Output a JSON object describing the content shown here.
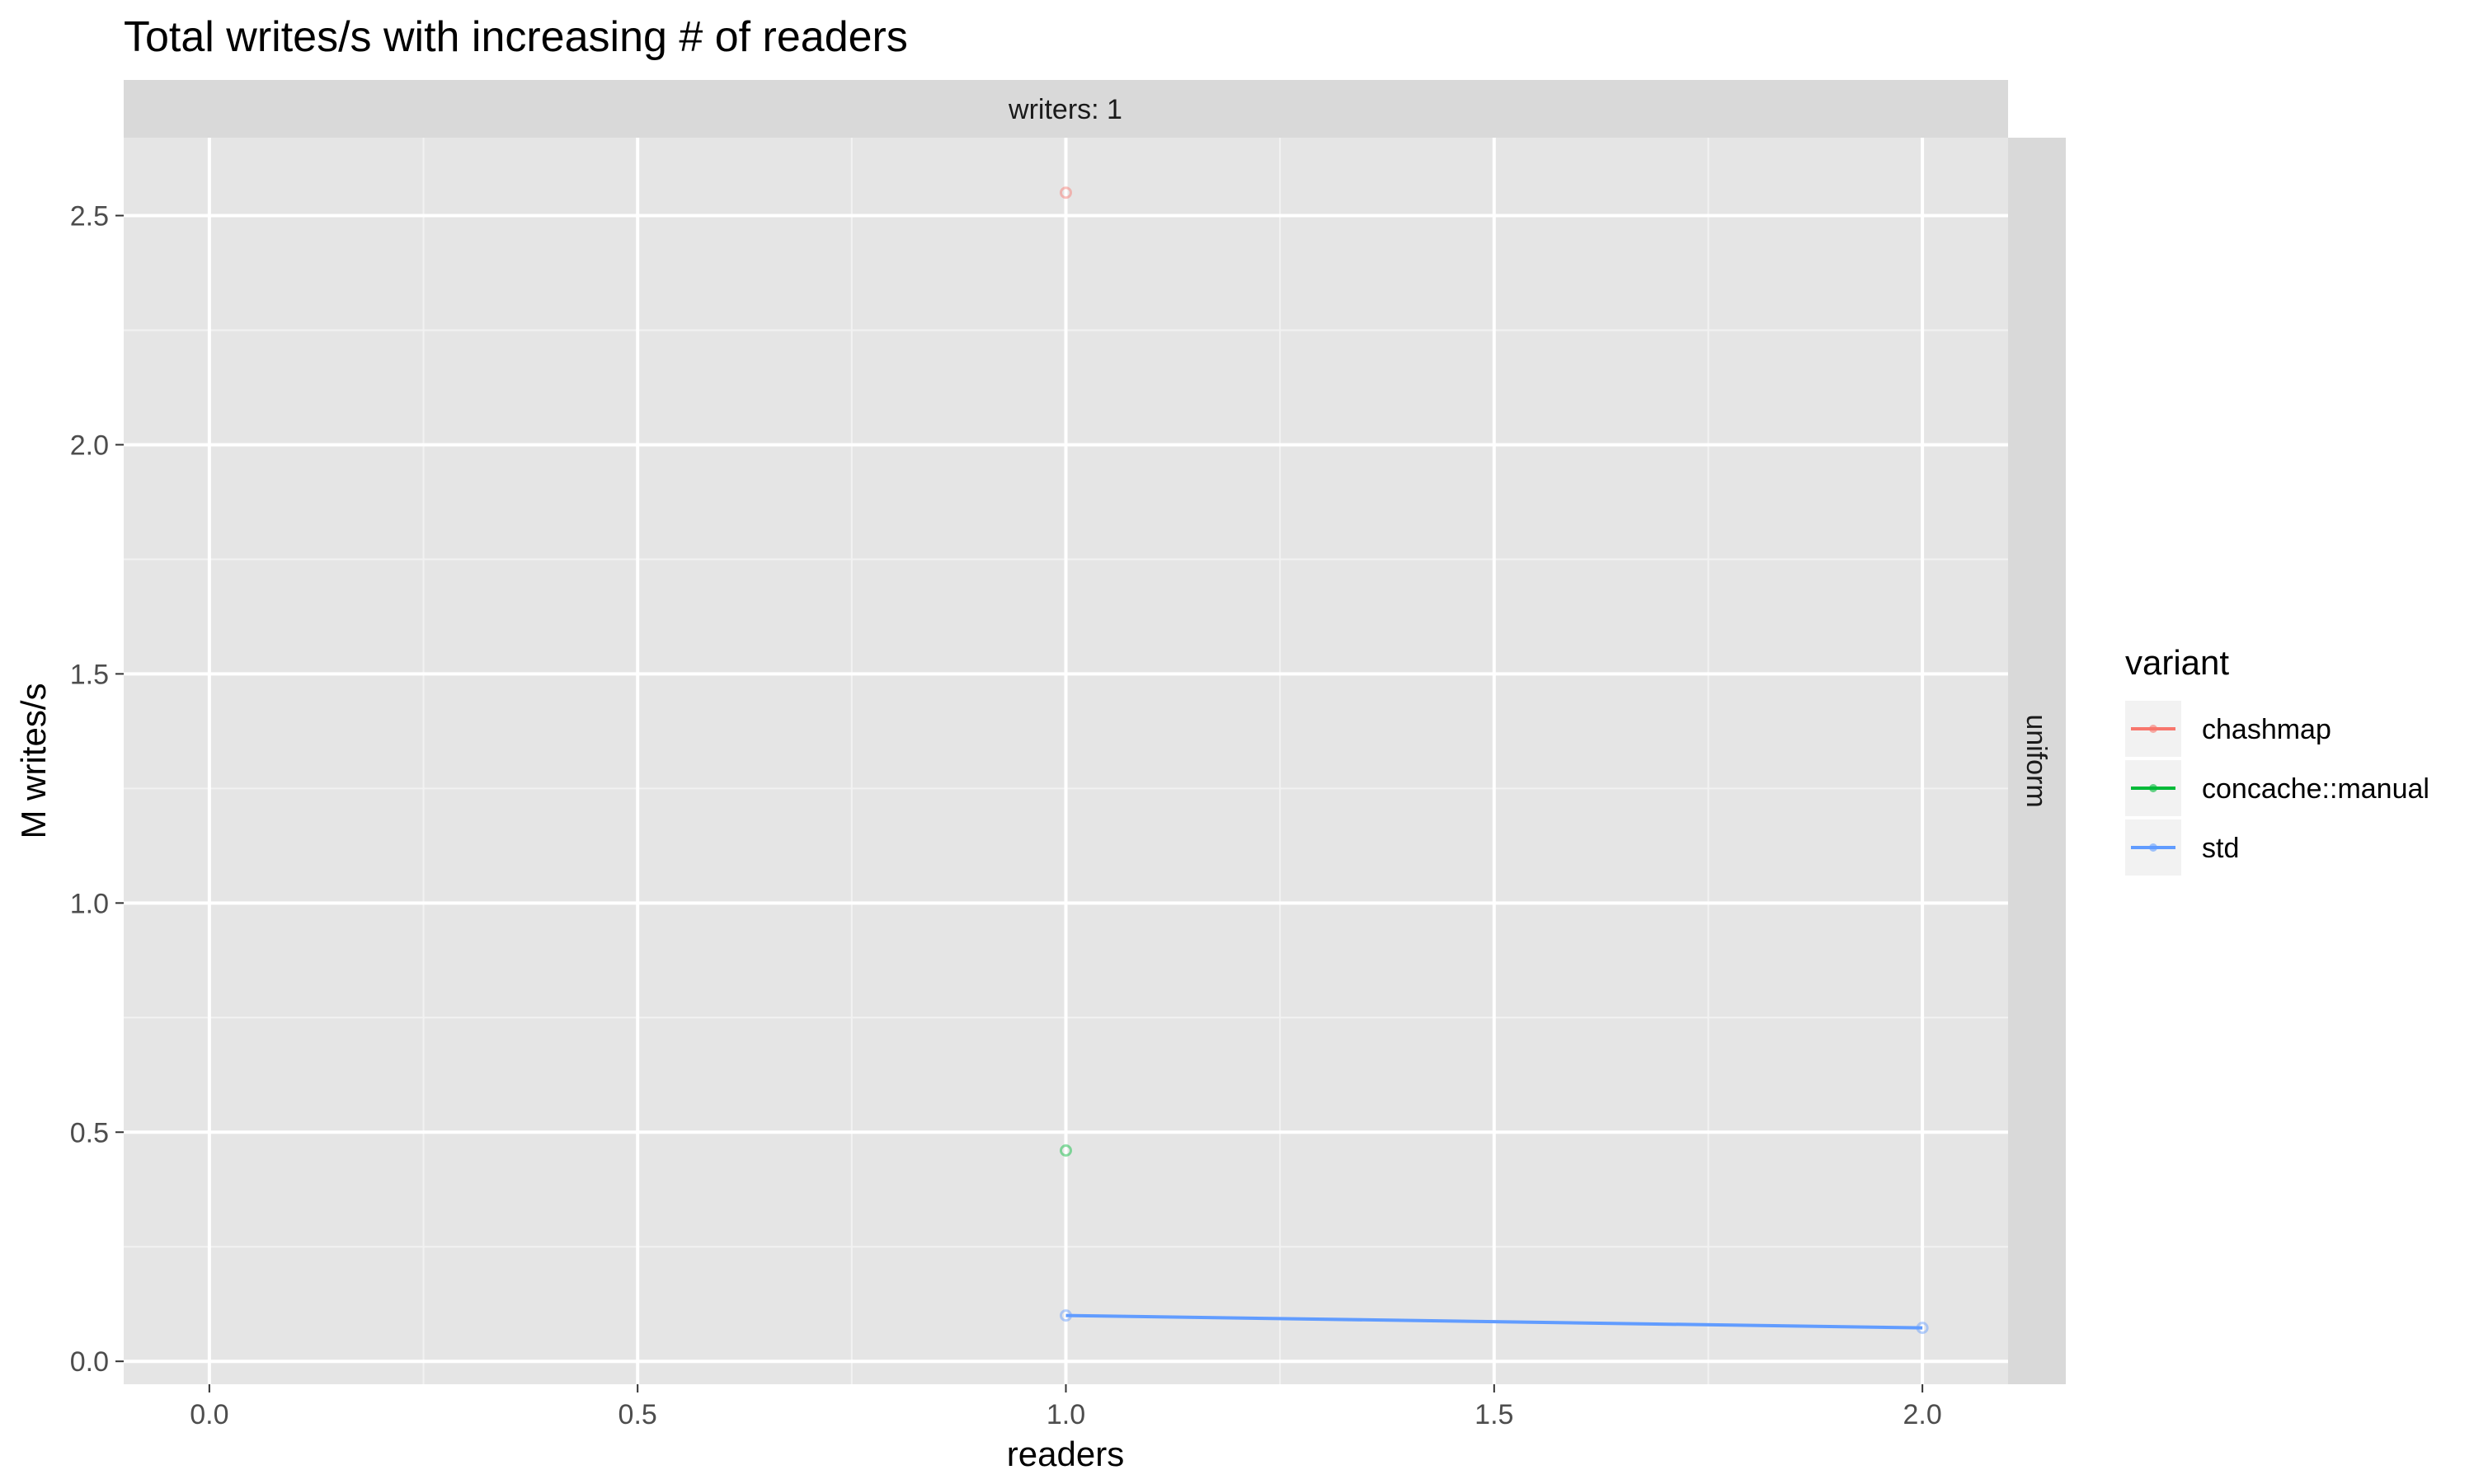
{
  "chart_data": {
    "type": "line",
    "title": "Total writes/s with increasing # of readers",
    "xlabel": "readers",
    "ylabel": "M writes/s",
    "facet_top": "writers: 1",
    "facet_right": "uniform",
    "xlim": [
      -0.1,
      2.1
    ],
    "ylim": [
      -0.05,
      2.67
    ],
    "xticks": [
      0.0,
      0.5,
      1.0,
      1.5,
      2.0
    ],
    "xtick_labels": [
      "0.0",
      "0.5",
      "1.0",
      "1.5",
      "2.0"
    ],
    "yticks": [
      0.0,
      0.5,
      1.0,
      1.5,
      2.0,
      2.5
    ],
    "ytick_labels": [
      "0.0",
      "0.5",
      "1.0",
      "1.5",
      "2.0",
      "2.5"
    ],
    "grid": true,
    "legend_position": "right",
    "legend_title": "variant",
    "series": [
      {
        "name": "chashmap",
        "color": "#F8766D",
        "x": [
          1
        ],
        "y": [
          2.55
        ]
      },
      {
        "name": "concache::manual",
        "color": "#00BA38",
        "x": [
          1
        ],
        "y": [
          0.46
        ]
      },
      {
        "name": "std",
        "color": "#619CFF",
        "x": [
          1,
          2
        ],
        "y": [
          0.1,
          0.073
        ]
      }
    ]
  }
}
